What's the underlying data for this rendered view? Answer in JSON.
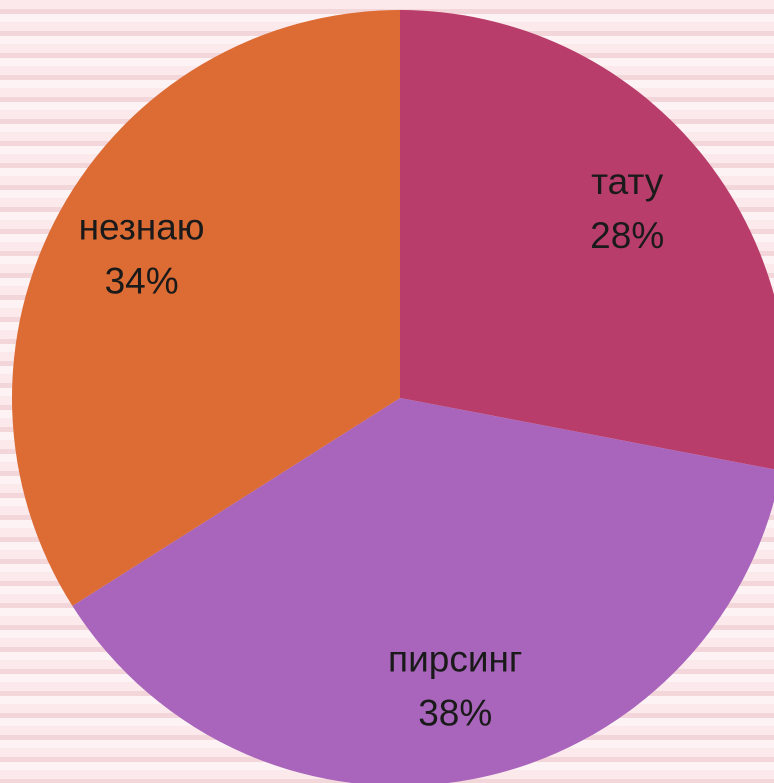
{
  "chart_data": {
    "type": "pie",
    "categories": [
      "тату",
      "пирсинг",
      "незнаю"
    ],
    "values": [
      28,
      38,
      34
    ],
    "value_labels": [
      "28%",
      "38%",
      "34%"
    ],
    "colors": [
      "#b93d6a",
      "#a865bb",
      "#dc6b34"
    ]
  }
}
